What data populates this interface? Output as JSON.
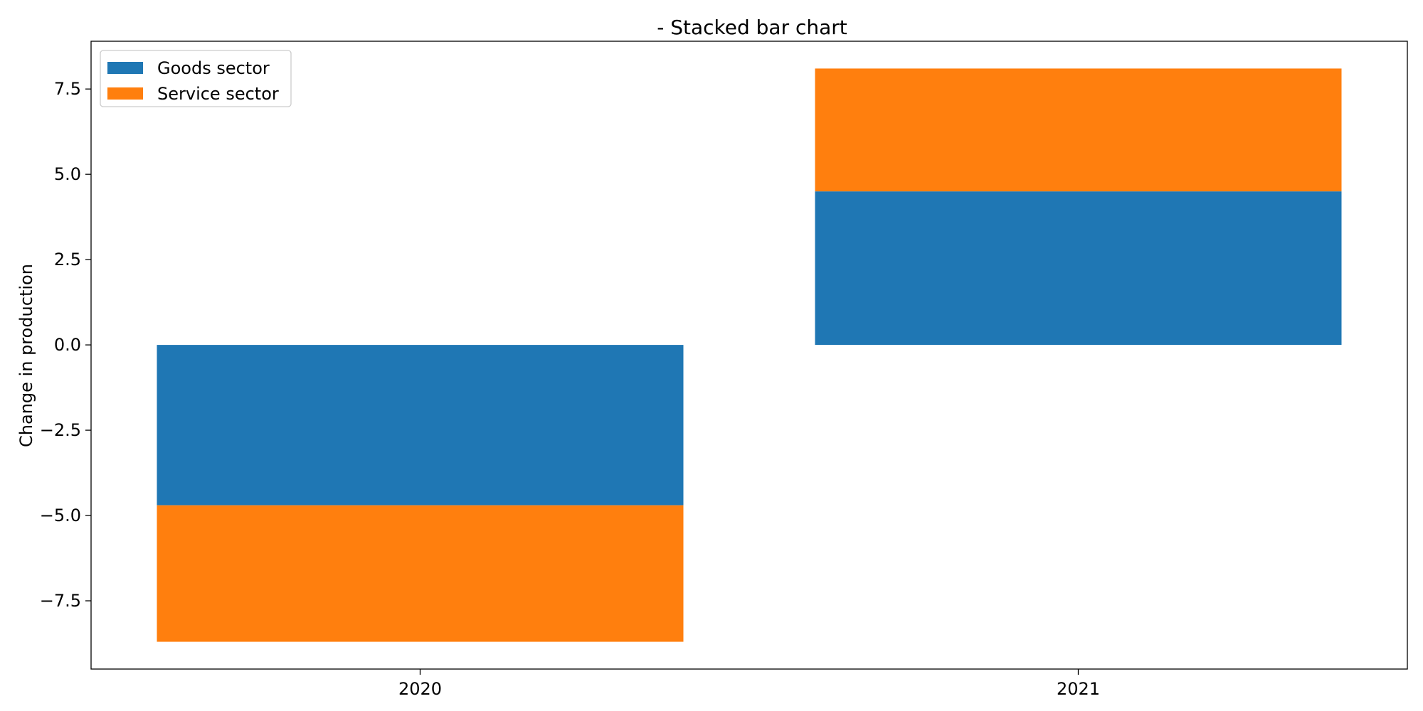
{
  "chart_data": {
    "type": "bar",
    "stacked": true,
    "title": "- Stacked bar chart",
    "xlabel": "",
    "ylabel": "Change in production",
    "categories": [
      "2020",
      "2021"
    ],
    "series": [
      {
        "name": "Goods sector",
        "color": "#1f77b4",
        "values": [
          -4.7,
          4.5
        ]
      },
      {
        "name": "Service sector",
        "color": "#ff7f0e",
        "values": [
          -4.0,
          3.6
        ]
      }
    ],
    "ylim": [
      -9.5,
      8.9
    ],
    "yticks": [
      -7.5,
      -5.0,
      -2.5,
      0.0,
      2.5,
      5.0,
      7.5
    ],
    "ytick_labels": [
      "−7.5",
      "−5.0",
      "−2.5",
      "0.0",
      "2.5",
      "5.0",
      "7.5"
    ],
    "grid": false,
    "legend_position": "top-left"
  }
}
